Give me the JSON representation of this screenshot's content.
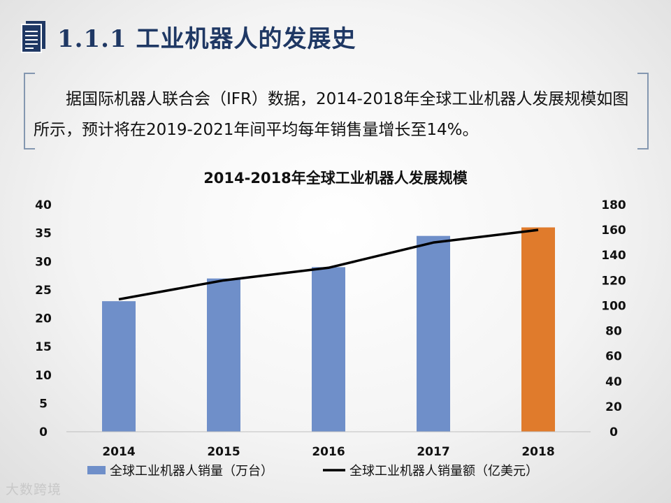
{
  "header": {
    "title": "1.1.1 工业机器人的发展史",
    "icon": "document-icon"
  },
  "intro": {
    "text": "据国际机器人联合会（IFR）数据，2014-2018年全球工业机器人发展规模如图所示，预计将在2019-2021年间平均每年销售量增长至14%。"
  },
  "chart_data": {
    "type": "bar",
    "title": "2014-2018年全球工业机器人发展规模",
    "categories": [
      "2014",
      "2015",
      "2016",
      "2017",
      "2018"
    ],
    "series": [
      {
        "name": "全球工业机器人销量（万台）",
        "kind": "bar",
        "axis": "left",
        "values": [
          23,
          27,
          29,
          34.5,
          36
        ],
        "colors": [
          "#6f8fc9",
          "#6f8fc9",
          "#6f8fc9",
          "#6f8fc9",
          "#e07b2c"
        ]
      },
      {
        "name": "全球工业机器人销量额（亿美元）",
        "kind": "line",
        "axis": "right",
        "values": [
          105,
          120,
          130,
          150,
          160
        ],
        "color": "#000000"
      }
    ],
    "y_left": {
      "min": 0,
      "max": 40,
      "ticks": [
        "0",
        "5",
        "10",
        "15",
        "20",
        "25",
        "30",
        "35",
        "40"
      ]
    },
    "y_right": {
      "min": 0,
      "max": 180,
      "ticks": [
        "0",
        "20",
        "40",
        "60",
        "80",
        "100",
        "120",
        "140",
        "160",
        "180"
      ]
    },
    "grid": false,
    "legend_position": "bottom"
  },
  "watermark": {
    "text": "大数跨境"
  }
}
